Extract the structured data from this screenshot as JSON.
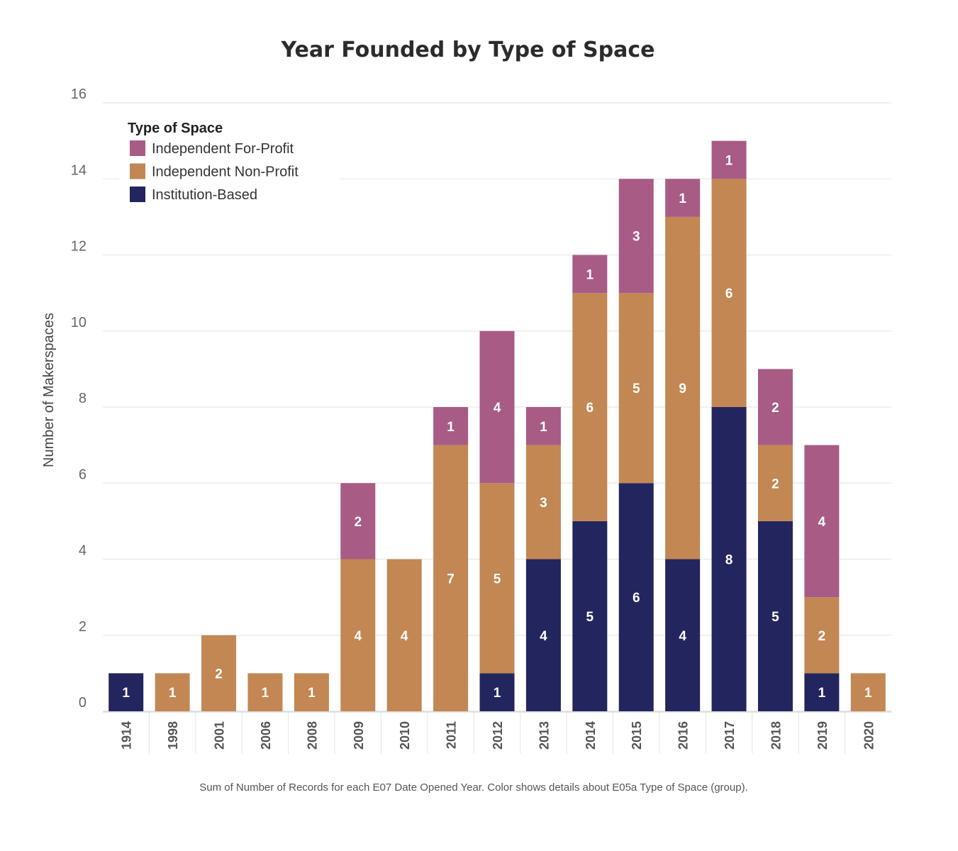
{
  "chart_data": {
    "type": "bar",
    "stacked": true,
    "title": "Year Founded by Type of Space",
    "ylabel": "Number of Makerspaces",
    "xlabel": "",
    "ylim": [
      0,
      16
    ],
    "yticks": [
      0,
      2,
      4,
      6,
      8,
      10,
      12,
      14,
      16
    ],
    "grid": true,
    "legend_position": "top-left",
    "legend_title": "Type of Space",
    "caption": "Sum of Number of Records for each E07 Date Opened Year. Color shows details about E05a Type of Space (group).",
    "categories": [
      "1914",
      "1998",
      "2001",
      "2006",
      "2008",
      "2009",
      "2010",
      "2011",
      "2012",
      "2013",
      "2014",
      "2015",
      "2016",
      "2017",
      "2018",
      "2019",
      "2020"
    ],
    "series": [
      {
        "name": "Institution-Based",
        "color": "#23255e",
        "values": [
          1,
          0,
          0,
          0,
          0,
          0,
          0,
          0,
          1,
          4,
          5,
          6,
          4,
          8,
          5,
          1,
          0
        ]
      },
      {
        "name": "Independent Non-Profit",
        "color": "#c28753",
        "values": [
          0,
          1,
          2,
          1,
          1,
          4,
          4,
          7,
          5,
          3,
          6,
          5,
          9,
          6,
          2,
          2,
          1
        ]
      },
      {
        "name": "Independent For-Profit",
        "color": "#a85b85",
        "values": [
          0,
          0,
          0,
          0,
          0,
          2,
          0,
          1,
          4,
          1,
          1,
          3,
          1,
          1,
          2,
          4,
          0
        ]
      }
    ],
    "legend_order": [
      "Independent For-Profit",
      "Independent Non-Profit",
      "Institution-Based"
    ]
  }
}
